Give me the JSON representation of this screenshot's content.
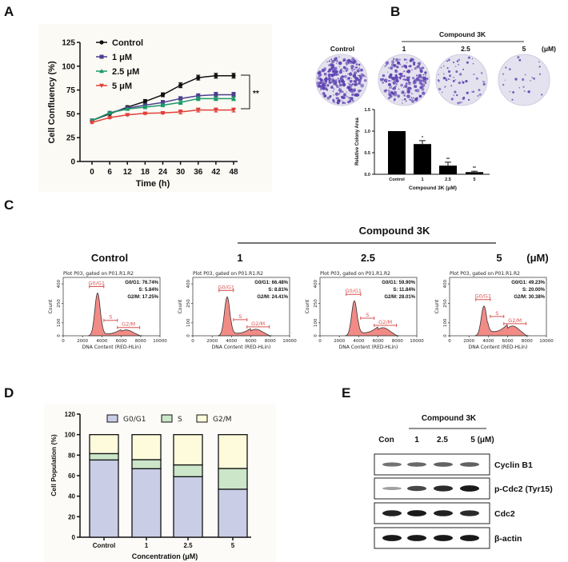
{
  "panel_labels": {
    "a": "A",
    "b": "B",
    "c": "C",
    "d": "D",
    "e": "E"
  },
  "chart_data": [
    {
      "panel": "A",
      "type": "line",
      "xlabel": "Time (h)",
      "ylabel": "Cell Confluency (%)",
      "x": [
        0,
        6,
        12,
        18,
        24,
        30,
        36,
        42,
        48
      ],
      "xticks": [
        "0",
        "6",
        "12",
        "18",
        "24",
        "30",
        "36",
        "42",
        "48"
      ],
      "ylim": [
        0,
        125
      ],
      "yticks": [
        "0",
        "25",
        "50",
        "75",
        "100",
        "125"
      ],
      "legend_position": "top-left",
      "significance": "**",
      "series": [
        {
          "name": "Control",
          "color": "#111111",
          "marker": "circle",
          "values": [
            43,
            50,
            57,
            63,
            70,
            80,
            88,
            90,
            90
          ],
          "error": [
            1,
            1,
            1.5,
            2,
            2,
            2.5,
            2.5,
            2.5,
            2.5
          ]
        },
        {
          "name": "1 μM",
          "color": "#4b3f8e",
          "marker": "square",
          "values": [
            43,
            51,
            56,
            59,
            62,
            66,
            69,
            70,
            70
          ],
          "error": [
            1,
            1,
            1,
            1.5,
            2,
            2,
            2,
            2.5,
            2.5
          ]
        },
        {
          "name": "2.5 μM",
          "color": "#1b9a68",
          "marker": "triangle-up",
          "values": [
            43,
            51,
            55,
            57,
            59,
            62,
            66,
            66,
            66
          ],
          "error": [
            1,
            1,
            1,
            1.5,
            1.5,
            2,
            2,
            2,
            2
          ]
        },
        {
          "name": "5 μM",
          "color": "#e2403a",
          "marker": "triangle-down",
          "values": [
            41,
            46,
            49,
            50.5,
            51,
            52,
            54,
            54,
            54
          ],
          "error": [
            1,
            1,
            1,
            1,
            1,
            2,
            2,
            2,
            2
          ]
        }
      ]
    },
    {
      "panel": "B",
      "type": "bar",
      "xlabel": "Compound 3K (μM)",
      "ylabel": "Relative Colony Area",
      "categories": [
        "Control",
        "1",
        "2.5",
        "5"
      ],
      "values": [
        1.0,
        0.7,
        0.2,
        0.05
      ],
      "error": [
        0,
        0.08,
        0.08,
        0.02
      ],
      "significance": [
        "",
        "*",
        "**",
        "**"
      ],
      "ylim": [
        0,
        1.5
      ],
      "yticks": [
        "0.0",
        "0.5",
        "1.0",
        "1.5"
      ],
      "bar_color": "#000000"
    },
    {
      "panel": "D",
      "type": "bar",
      "stacked": true,
      "xlabel": "Concentration (μM)",
      "ylabel": "Cell Population (%)",
      "categories": [
        "Control",
        "1",
        "2.5",
        "5"
      ],
      "ylim": [
        0,
        120
      ],
      "yticks": [
        "0",
        "20",
        "40",
        "60",
        "80",
        "100",
        "120"
      ],
      "legend_position": "top",
      "series": [
        {
          "name": "G0/G1",
          "color": "#c9cde6",
          "values": [
            75.3,
            66.8,
            59.0,
            46.8
          ]
        },
        {
          "name": "S",
          "color": "#cbe6c9",
          "values": [
            6.2,
            8.8,
            11.5,
            20.2
          ]
        },
        {
          "name": "G2/M",
          "color": "#fdfbdc",
          "values": [
            18.5,
            24.4,
            29.5,
            33.0
          ]
        }
      ]
    }
  ],
  "panel_b": {
    "group_label": "Compound 3K",
    "unit": "(μM)",
    "dish_labels": [
      "Control",
      "1",
      "2.5",
      "5"
    ],
    "stain_color": "#5a3fb0"
  },
  "panel_c": {
    "group_label": "Compound 3K",
    "unit": "(μM)",
    "plots": [
      {
        "title": "Control",
        "header": "Plot P03, gated on P01.R1.R2",
        "stats": [
          "G0/G1: 76.74%",
          "S: 5.84%",
          "G2/M: 17.25%"
        ]
      },
      {
        "title": "1",
        "header": "Plot P03, gated on P01.R1.R2",
        "stats": [
          "G0/G1: 66.48%",
          "S: 8.81%",
          "G2/M: 24.41%"
        ]
      },
      {
        "title": "2.5",
        "header": "Plot P03, gated on P01.R1.R2",
        "stats": [
          "G0/G1: 59.90%",
          "S: 11.84%",
          "G2/M: 28.01%"
        ]
      },
      {
        "title": "5",
        "header": "Plot P03, gated on P01.R1.R2",
        "stats": [
          "G0/G1: 49.23%",
          "S: 20.00%",
          "G2/M: 30.38%"
        ]
      }
    ],
    "gates": [
      "G0/G1",
      "S",
      "G2/M"
    ],
    "xticks": [
      "0",
      "2000",
      "4000",
      "6000",
      "8000",
      "10000"
    ],
    "yticks": [
      "0",
      "100",
      "250",
      "400"
    ],
    "xlabel": "DNA Content (RED-HLin)",
    "ylabel": "Count",
    "fill_color": "#f28b86",
    "gate_color": "#d9534f"
  },
  "panel_e": {
    "group_label": "Compound 3K",
    "lanes": [
      "Con",
      "1",
      "2.5",
      "5 (μM)"
    ],
    "blots": [
      {
        "label": "Cyclin B1",
        "band_intensity": [
          0.45,
          0.5,
          0.55,
          0.55
        ]
      },
      {
        "label": "p-Cdc2 (Tyr15)",
        "band_intensity": [
          0.2,
          0.7,
          0.85,
          0.95
        ]
      },
      {
        "label": "Cdc2",
        "band_intensity": [
          0.9,
          0.95,
          0.9,
          0.85
        ]
      },
      {
        "label": "β-actin",
        "band_intensity": [
          0.95,
          0.95,
          0.95,
          0.95
        ]
      }
    ]
  }
}
